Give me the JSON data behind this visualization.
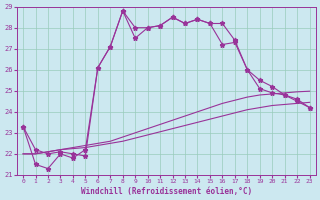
{
  "xlabel": "Windchill (Refroidissement éolien,°C)",
  "bg_color": "#cce8f0",
  "grid_color": "#99ccbb",
  "line_color": "#993399",
  "ylim": [
    21,
    29
  ],
  "xlim": [
    -0.5,
    23.5
  ],
  "yticks": [
    21,
    22,
    23,
    24,
    25,
    26,
    27,
    28,
    29
  ],
  "xticks": [
    0,
    1,
    2,
    3,
    4,
    5,
    6,
    7,
    8,
    9,
    10,
    11,
    12,
    13,
    14,
    15,
    16,
    17,
    18,
    19,
    20,
    21,
    22,
    23
  ],
  "series1": [
    23.3,
    22.2,
    22.0,
    22.1,
    22.0,
    21.9,
    26.1,
    27.1,
    28.8,
    27.5,
    28.0,
    28.1,
    28.5,
    28.2,
    28.4,
    28.2,
    27.2,
    27.3,
    26.0,
    25.1,
    24.9,
    24.8,
    24.5,
    24.2
  ],
  "series2": [
    23.3,
    21.5,
    21.3,
    22.0,
    21.8,
    22.2,
    26.1,
    27.1,
    28.8,
    28.0,
    28.0,
    28.1,
    28.5,
    28.2,
    28.4,
    28.2,
    28.2,
    27.4,
    26.0,
    25.5,
    25.2,
    24.8,
    24.6,
    24.2
  ],
  "series3": [
    22.0,
    22.0,
    22.1,
    22.2,
    22.3,
    22.4,
    22.5,
    22.6,
    22.8,
    23.0,
    23.2,
    23.4,
    23.6,
    23.8,
    24.0,
    24.2,
    24.4,
    24.55,
    24.7,
    24.8,
    24.85,
    24.9,
    24.95,
    24.98
  ],
  "series4": [
    22.0,
    22.0,
    22.1,
    22.2,
    22.25,
    22.3,
    22.4,
    22.5,
    22.6,
    22.75,
    22.9,
    23.05,
    23.2,
    23.35,
    23.5,
    23.65,
    23.8,
    23.95,
    24.1,
    24.2,
    24.3,
    24.35,
    24.4,
    24.45
  ]
}
